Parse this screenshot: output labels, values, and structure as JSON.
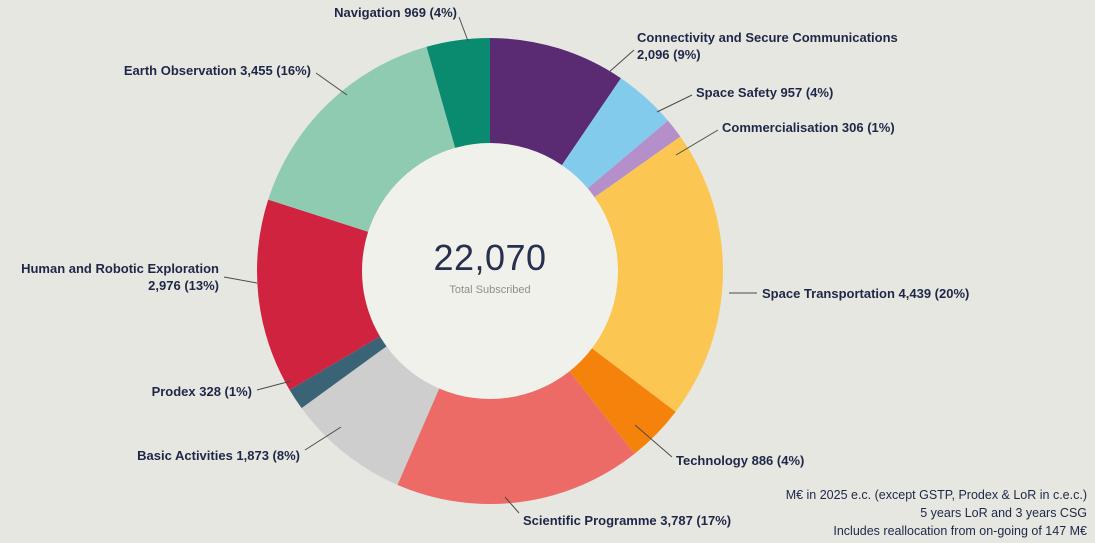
{
  "page": {
    "background": "#e7e7e2",
    "text_color": "#1f2747"
  },
  "chart_data": {
    "type": "pie",
    "variant": "donut",
    "title": "",
    "legend": "none",
    "labels": "outside-with-leader-lines",
    "center": {
      "value": "22,070",
      "label": "Total Subscribed"
    },
    "total": 22070,
    "start_angle_deg": 0,
    "direction": "clockwise",
    "segments": [
      {
        "id": "connectivity",
        "name": "Connectivity and Secure Communications",
        "value": 2096,
        "pct": 9,
        "color": "#5a2a72",
        "display": "Connectivity and Secure Communications\n2,096 (9%)"
      },
      {
        "id": "space-safety",
        "name": "Space Safety",
        "value": 957,
        "pct": 4,
        "color": "#82cbed",
        "display": "Space Safety 957 (4%)"
      },
      {
        "id": "commercialisation",
        "name": "Commercialisation",
        "value": 306,
        "pct": 1,
        "color": "#b58fc9",
        "display": "Commercialisation 306 (1%)"
      },
      {
        "id": "space-transportation",
        "name": "Space Transportation",
        "value": 4439,
        "pct": 20,
        "color": "#fcc652",
        "display": "Space Transportation 4,439 (20%)"
      },
      {
        "id": "technology",
        "name": "Technology",
        "value": 886,
        "pct": 4,
        "color": "#f5820a",
        "display": "Technology 886 (4%)"
      },
      {
        "id": "scientific-programme",
        "name": "Scientific Programme",
        "value": 3787,
        "pct": 17,
        "color": "#ed6b66",
        "display": "Scientific Programme 3,787 (17%)"
      },
      {
        "id": "basic-activities",
        "name": "Basic Activities",
        "value": 1873,
        "pct": 8,
        "color": "#cecece",
        "display": "Basic Activities 1,873 (8%)"
      },
      {
        "id": "prodex",
        "name": "Prodex",
        "value": 328,
        "pct": 1,
        "color": "#3a6375",
        "display": "Prodex 328 (1%)"
      },
      {
        "id": "human-robotic-exploration",
        "name": "Human and Robotic Exploration",
        "value": 2976,
        "pct": 13,
        "color": "#cf2340",
        "display": "Human and Robotic Exploration\n2,976 (13%)"
      },
      {
        "id": "earth-observation",
        "name": "Earth Observation",
        "value": 3455,
        "pct": 16,
        "color": "#8fcbb0",
        "display": "Earth Observation 3,455 (16%)"
      },
      {
        "id": "navigation",
        "name": "Navigation",
        "value": 969,
        "pct": 4,
        "color": "#0a8a6e",
        "display": "Navigation 969 (4%)"
      }
    ],
    "notes": [
      "M€ in 2025 e.c. (except GSTP, Prodex & LoR in c.e.c.)",
      "5 years LoR and 3 years CSG",
      "Includes reallocation from on-going of 147 M€"
    ]
  }
}
